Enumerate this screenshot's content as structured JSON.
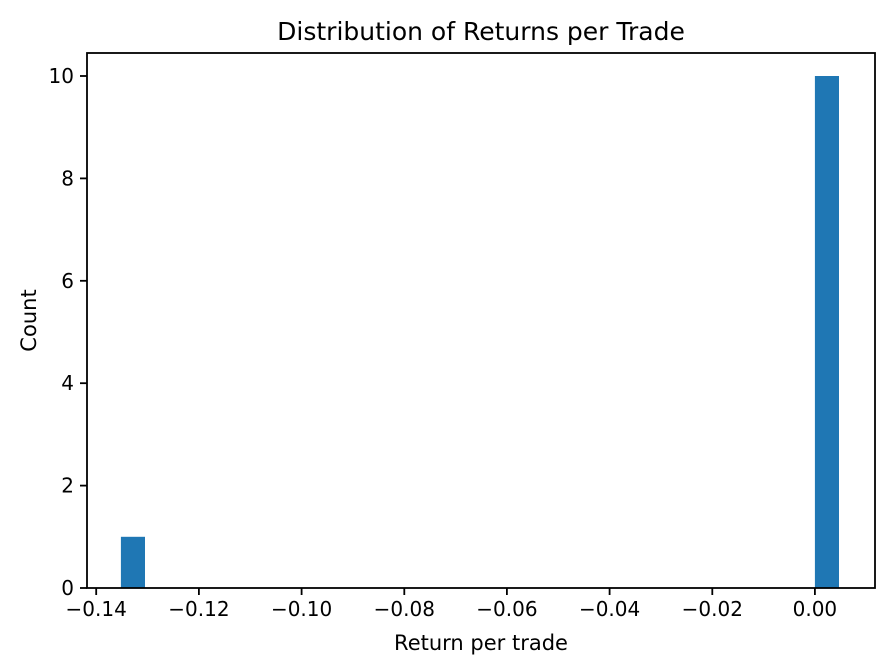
{
  "chart_data": {
    "type": "bar",
    "subtype": "histogram",
    "title": "Distribution of Returns per Trade",
    "xlabel": "Return per trade",
    "ylabel": "Count",
    "bar_color": "#1f77b4",
    "axis_color": "#000000",
    "background_color": "#ffffff",
    "grid": false,
    "legend": false,
    "xlim": [
      -0.1418,
      0.0117
    ],
    "ylim": [
      0,
      10.45
    ],
    "xticks": {
      "values": [
        -0.14,
        -0.12,
        -0.1,
        -0.08,
        -0.06,
        -0.04,
        -0.02,
        0.0
      ],
      "labels": [
        "−0.14",
        "−0.12",
        "−0.10",
        "−0.08",
        "−0.06",
        "−0.04",
        "−0.02",
        "0.00"
      ]
    },
    "yticks": {
      "values": [
        0,
        2,
        4,
        6,
        8,
        10
      ],
      "labels": [
        "0",
        "2",
        "4",
        "6",
        "8",
        "10"
      ]
    },
    "bars": [
      {
        "bin_start": -0.1352,
        "bin_end": -0.1305,
        "count": 1
      },
      {
        "bin_start": 0.0,
        "bin_end": 0.0047,
        "count": 10
      }
    ]
  }
}
